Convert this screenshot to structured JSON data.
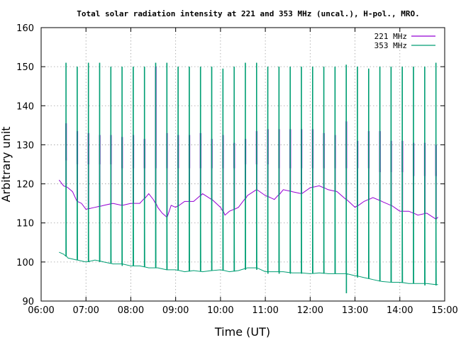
{
  "chart_data": {
    "type": "line",
    "title": "Total solar radiation intensity at 221 and 353 MHz (uncal.), H-pol., MRO.",
    "xlabel": "Time (UT)",
    "ylabel": "Arbitrary unit",
    "xlim": [
      6.0,
      15.0
    ],
    "ylim": [
      90,
      160
    ],
    "x_ticks": [
      "06:00",
      "07:00",
      "08:00",
      "09:00",
      "10:00",
      "11:00",
      "12:00",
      "13:00",
      "14:00",
      "15:00"
    ],
    "y_ticks": [
      "90",
      "100",
      "110",
      "120",
      "130",
      "140",
      "150",
      "160"
    ],
    "grid": true,
    "legend_position": "top-right",
    "series": [
      {
        "name": "221 MHz",
        "color": "#9400d3",
        "baseline": [
          [
            6.4,
            121.0
          ],
          [
            6.5,
            119.5
          ],
          [
            6.6,
            119.0
          ],
          [
            6.7,
            118.0
          ],
          [
            6.8,
            115.5
          ],
          [
            6.9,
            115.0
          ],
          [
            7.0,
            113.5
          ],
          [
            7.2,
            114.0
          ],
          [
            7.4,
            114.5
          ],
          [
            7.6,
            115.0
          ],
          [
            7.8,
            114.5
          ],
          [
            8.0,
            115.0
          ],
          [
            8.2,
            115.0
          ],
          [
            8.4,
            117.5
          ],
          [
            8.5,
            116.0
          ],
          [
            8.6,
            114.0
          ],
          [
            8.7,
            112.5
          ],
          [
            8.8,
            111.5
          ],
          [
            8.9,
            114.5
          ],
          [
            9.0,
            114.0
          ],
          [
            9.2,
            115.5
          ],
          [
            9.4,
            115.5
          ],
          [
            9.6,
            117.5
          ],
          [
            9.8,
            116.0
          ],
          [
            10.0,
            114.0
          ],
          [
            10.1,
            112.0
          ],
          [
            10.2,
            113.0
          ],
          [
            10.4,
            114.0
          ],
          [
            10.6,
            117.0
          ],
          [
            10.8,
            118.5
          ],
          [
            11.0,
            117.0
          ],
          [
            11.2,
            116.0
          ],
          [
            11.4,
            118.5
          ],
          [
            11.6,
            118.0
          ],
          [
            11.8,
            117.5
          ],
          [
            12.0,
            119.0
          ],
          [
            12.2,
            119.5
          ],
          [
            12.4,
            118.5
          ],
          [
            12.6,
            118.0
          ],
          [
            12.8,
            116.0
          ],
          [
            13.0,
            114.0
          ],
          [
            13.2,
            115.5
          ],
          [
            13.4,
            116.5
          ],
          [
            13.6,
            115.5
          ],
          [
            13.8,
            114.5
          ],
          [
            14.0,
            113.0
          ],
          [
            14.2,
            113.0
          ],
          [
            14.4,
            112.0
          ],
          [
            14.6,
            112.5
          ],
          [
            14.8,
            111.0
          ],
          [
            14.85,
            111.5
          ]
        ],
        "spikes": [
          {
            "t": 6.55,
            "low": 126,
            "high": 135.5
          },
          {
            "t": 6.8,
            "low": 125,
            "high": 133.5
          },
          {
            "t": 7.05,
            "low": 125,
            "high": 133
          },
          {
            "t": 7.3,
            "low": 125,
            "high": 132.5
          },
          {
            "t": 7.55,
            "low": 125,
            "high": 132.5
          },
          {
            "t": 7.8,
            "low": 124,
            "high": 132
          },
          {
            "t": 8.05,
            "low": 124,
            "high": 132.5
          },
          {
            "t": 8.3,
            "low": 124,
            "high": 131.5
          },
          {
            "t": 8.55,
            "low": 124,
            "high": 150
          },
          {
            "t": 8.8,
            "low": 124,
            "high": 133
          },
          {
            "t": 9.05,
            "low": 124,
            "high": 132.5
          },
          {
            "t": 9.3,
            "low": 124,
            "high": 132.5
          },
          {
            "t": 9.55,
            "low": 124,
            "high": 133
          },
          {
            "t": 9.8,
            "low": 124,
            "high": 131.5
          },
          {
            "t": 10.05,
            "low": 124,
            "high": 132.5
          },
          {
            "t": 10.3,
            "low": 124,
            "high": 130.5
          },
          {
            "t": 10.55,
            "low": 125,
            "high": 131.5
          },
          {
            "t": 10.8,
            "low": 125,
            "high": 133.5
          },
          {
            "t": 11.05,
            "low": 125,
            "high": 134
          },
          {
            "t": 11.3,
            "low": 124,
            "high": 134
          },
          {
            "t": 11.55,
            "low": 124,
            "high": 134
          },
          {
            "t": 11.8,
            "low": 124,
            "high": 134
          },
          {
            "t": 12.05,
            "low": 124,
            "high": 134
          },
          {
            "t": 12.3,
            "low": 124,
            "high": 133
          },
          {
            "t": 12.55,
            "low": 124,
            "high": 132.5
          },
          {
            "t": 12.8,
            "low": 124,
            "high": 136
          },
          {
            "t": 13.05,
            "low": 124,
            "high": 131
          },
          {
            "t": 13.3,
            "low": 124,
            "high": 133.5
          },
          {
            "t": 13.55,
            "low": 123,
            "high": 133.5
          },
          {
            "t": 13.8,
            "low": 123,
            "high": 131
          },
          {
            "t": 14.05,
            "low": 123,
            "high": 131
          },
          {
            "t": 14.3,
            "low": 122,
            "high": 130.5
          },
          {
            "t": 14.55,
            "low": 122,
            "high": 130.5
          },
          {
            "t": 14.8,
            "low": 122,
            "high": 130
          }
        ]
      },
      {
        "name": "353 MHz",
        "color": "#009e73",
        "baseline": [
          [
            6.4,
            102.5
          ],
          [
            6.5,
            102.0
          ],
          [
            6.6,
            101.0
          ],
          [
            6.8,
            100.5
          ],
          [
            7.0,
            100.0
          ],
          [
            7.2,
            100.5
          ],
          [
            7.4,
            100.0
          ],
          [
            7.6,
            99.5
          ],
          [
            7.8,
            99.5
          ],
          [
            8.0,
            99.0
          ],
          [
            8.2,
            99.0
          ],
          [
            8.4,
            98.5
          ],
          [
            8.6,
            98.5
          ],
          [
            8.8,
            98.0
          ],
          [
            9.0,
            98.0
          ],
          [
            9.2,
            97.5
          ],
          [
            9.4,
            97.8
          ],
          [
            9.6,
            97.5
          ],
          [
            9.8,
            97.8
          ],
          [
            10.0,
            98.0
          ],
          [
            10.2,
            97.5
          ],
          [
            10.4,
            97.8
          ],
          [
            10.6,
            98.5
          ],
          [
            10.8,
            98.5
          ],
          [
            11.0,
            97.5
          ],
          [
            11.2,
            97.5
          ],
          [
            11.4,
            97.5
          ],
          [
            11.6,
            97.2
          ],
          [
            11.8,
            97.2
          ],
          [
            12.0,
            97.0
          ],
          [
            12.2,
            97.2
          ],
          [
            12.4,
            97.0
          ],
          [
            12.6,
            97.0
          ],
          [
            12.8,
            97.0
          ],
          [
            13.0,
            96.5
          ],
          [
            13.2,
            96.0
          ],
          [
            13.4,
            95.5
          ],
          [
            13.6,
            95.0
          ],
          [
            13.8,
            94.8
          ],
          [
            14.0,
            94.8
          ],
          [
            14.2,
            94.5
          ],
          [
            14.4,
            94.5
          ],
          [
            14.6,
            94.5
          ],
          [
            14.8,
            94.2
          ],
          [
            14.85,
            94.2
          ]
        ],
        "spikes": [
          {
            "t": 6.55,
            "low": 102,
            "high": 151
          },
          {
            "t": 6.8,
            "low": 101,
            "high": 150
          },
          {
            "t": 7.05,
            "low": 100,
            "high": 151
          },
          {
            "t": 7.3,
            "low": 100,
            "high": 151
          },
          {
            "t": 7.55,
            "low": 100,
            "high": 150
          },
          {
            "t": 7.8,
            "low": 99,
            "high": 150
          },
          {
            "t": 8.05,
            "low": 99,
            "high": 150
          },
          {
            "t": 8.3,
            "low": 99,
            "high": 150
          },
          {
            "t": 8.55,
            "low": 99,
            "high": 151
          },
          {
            "t": 8.8,
            "low": 98,
            "high": 151
          },
          {
            "t": 9.05,
            "low": 98,
            "high": 150
          },
          {
            "t": 9.3,
            "low": 98,
            "high": 150
          },
          {
            "t": 9.55,
            "low": 98,
            "high": 150
          },
          {
            "t": 9.8,
            "low": 98,
            "high": 150
          },
          {
            "t": 10.05,
            "low": 98,
            "high": 149.5
          },
          {
            "t": 10.3,
            "low": 98,
            "high": 150
          },
          {
            "t": 10.55,
            "low": 98,
            "high": 151
          },
          {
            "t": 10.8,
            "low": 98,
            "high": 151
          },
          {
            "t": 11.05,
            "low": 97,
            "high": 150
          },
          {
            "t": 11.3,
            "low": 97,
            "high": 150
          },
          {
            "t": 11.55,
            "low": 97,
            "high": 150
          },
          {
            "t": 11.8,
            "low": 97,
            "high": 150
          },
          {
            "t": 12.05,
            "low": 97,
            "high": 150
          },
          {
            "t": 12.3,
            "low": 97,
            "high": 150
          },
          {
            "t": 12.55,
            "low": 97,
            "high": 150
          },
          {
            "t": 12.8,
            "low": 92,
            "high": 150.5
          },
          {
            "t": 13.05,
            "low": 96,
            "high": 150
          },
          {
            "t": 13.3,
            "low": 96,
            "high": 149.5
          },
          {
            "t": 13.55,
            "low": 95,
            "high": 150
          },
          {
            "t": 13.8,
            "low": 95,
            "high": 150
          },
          {
            "t": 14.05,
            "low": 95,
            "high": 150
          },
          {
            "t": 14.3,
            "low": 95,
            "high": 150
          },
          {
            "t": 14.55,
            "low": 94,
            "high": 150
          },
          {
            "t": 14.8,
            "low": 94,
            "high": 151
          }
        ]
      }
    ]
  }
}
